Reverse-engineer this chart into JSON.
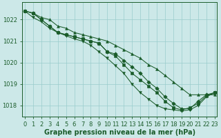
{
  "xlabel": "Graphe pression niveau de la mer (hPa)",
  "background_color": "#cce8e8",
  "grid_color": "#99cccc",
  "line_color": "#1a5c2a",
  "marker_color": "#1a5c2a",
  "ylim": [
    1017.5,
    1022.8
  ],
  "xlim": [
    -0.3,
    23.3
  ],
  "yticks": [
    1018,
    1019,
    1020,
    1021,
    1022
  ],
  "xticks": [
    0,
    1,
    2,
    3,
    4,
    5,
    6,
    7,
    8,
    9,
    10,
    11,
    12,
    13,
    14,
    15,
    16,
    17,
    18,
    19,
    20,
    21,
    22,
    23
  ],
  "series": [
    [
      1022.4,
      1022.3,
      1022.1,
      1022.0,
      1021.7,
      1021.6,
      1021.4,
      1021.3,
      1021.2,
      1021.1,
      1021.0,
      1020.8,
      1020.6,
      1020.4,
      1020.2,
      1019.9,
      1019.7,
      1019.4,
      1019.1,
      1018.8,
      1018.5,
      1018.5,
      1018.5,
      1018.5
    ],
    [
      1022.4,
      1022.3,
      1022.0,
      1021.7,
      1021.4,
      1021.3,
      1021.2,
      1021.1,
      1021.0,
      1020.9,
      1020.5,
      1020.4,
      1020.1,
      1019.8,
      1019.5,
      1019.1,
      1018.8,
      1018.4,
      1018.1,
      1017.85,
      1017.85,
      1018.2,
      1018.5,
      1018.6
    ],
    [
      1022.4,
      1022.3,
      1022.0,
      1021.7,
      1021.4,
      1021.3,
      1021.2,
      1021.1,
      1021.0,
      1020.9,
      1020.5,
      1020.3,
      1019.9,
      1019.5,
      1019.2,
      1018.9,
      1018.6,
      1018.2,
      1017.9,
      1017.8,
      1017.9,
      1018.1,
      1018.45,
      1018.6
    ],
    [
      1022.4,
      1022.1,
      1021.9,
      1021.6,
      1021.4,
      1021.25,
      1021.1,
      1021.0,
      1020.8,
      1020.5,
      1020.2,
      1019.85,
      1019.5,
      1019.0,
      1018.6,
      1018.3,
      1018.0,
      1017.85,
      1017.8,
      1017.75,
      1017.8,
      1018.0,
      1018.4,
      1018.6
    ]
  ],
  "markers": [
    "^",
    "D",
    "s",
    "v"
  ],
  "tick_fontsize": 6.0,
  "label_fontsize": 7.0
}
